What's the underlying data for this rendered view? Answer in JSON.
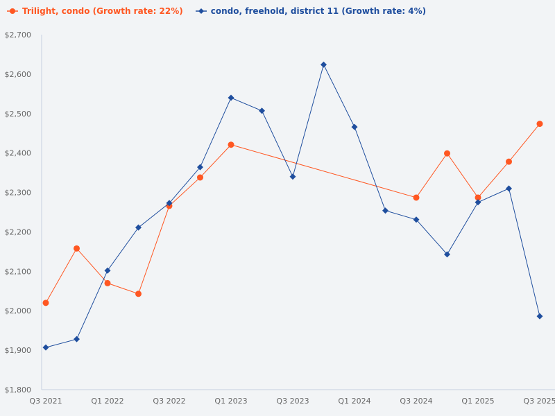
{
  "chart_data": {
    "type": "line",
    "title": "",
    "xlabel": "",
    "ylabel": "",
    "ylim": [
      1800,
      2700
    ],
    "yticks": [
      "$1,800",
      "$1,900",
      "$2,000",
      "$2,100",
      "$2,200",
      "$2,300",
      "$2,400",
      "$2,500",
      "$2,600",
      "$2,700"
    ],
    "ytick_values": [
      1800,
      1900,
      2000,
      2100,
      2200,
      2300,
      2400,
      2500,
      2600,
      2700
    ],
    "categories": [
      "Q3 2021",
      "Q4 2021",
      "Q1 2022",
      "Q2 2022",
      "Q3 2022",
      "Q4 2022",
      "Q1 2023",
      "Q2 2023",
      "Q3 2023",
      "Q4 2023",
      "Q1 2024",
      "Q2 2024",
      "Q3 2024",
      "Q4 2024",
      "Q1 2025",
      "Q2 2025",
      "Q3 2025"
    ],
    "xtick_labels": [
      "Q3 2021",
      "Q1 2022",
      "Q3 2022",
      "Q1 2023",
      "Q3 2023",
      "Q1 2024",
      "Q3 2024",
      "Q1 2025",
      "Q3 2025"
    ],
    "grid": false,
    "legend_position": "top-left",
    "series": [
      {
        "name": "Trilight, condo (Growth rate: 22%)",
        "color": "#ff5722",
        "marker": "circle",
        "values": [
          2020,
          2158,
          2070,
          2043,
          2266,
          2338,
          2421,
          null,
          null,
          null,
          null,
          null,
          2287,
          2399,
          2287,
          2378,
          2474
        ]
      },
      {
        "name": "condo, freehold, district 11 (Growth rate: 4%)",
        "color": "#1f4e9e",
        "marker": "diamond",
        "values": [
          1907,
          1928,
          2102,
          2211,
          2273,
          2364,
          2540,
          2507,
          2340,
          2624,
          2466,
          2254,
          2231,
          2143,
          2275,
          2310,
          1986
        ]
      }
    ]
  }
}
